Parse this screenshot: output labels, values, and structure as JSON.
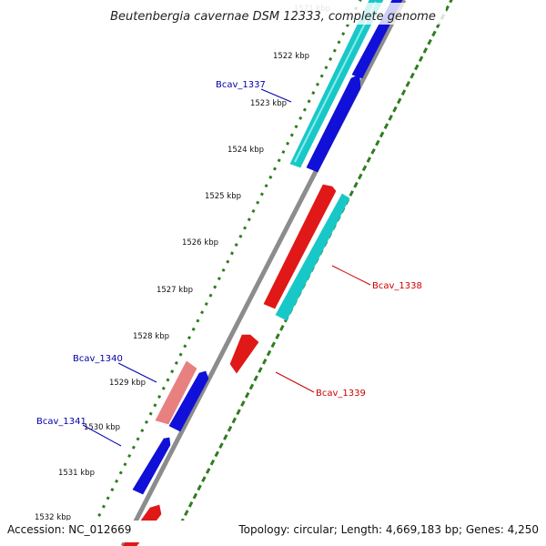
{
  "header": {
    "title": "Beutenbergia cavernae DSM 12333, complete genome"
  },
  "footer": {
    "accession": "Accession: NC_012669",
    "topology": "Topology: circular; Length: 4,669,183 bp; Genes: 4,250"
  },
  "colors": {
    "backbone": "#8c8c8c",
    "ticks": "#2e7d1e",
    "forward_gene": "#1010d8",
    "forward_rna": "#18c8c8",
    "reverse_gene": "#e01818",
    "reverse_pseudo": "#e88080",
    "label_blue": "#0000aa",
    "label_red": "#cc0000"
  },
  "chart_data": {
    "type": "genome-map",
    "units": "kbp",
    "visible_range_kbp": [
      1521,
      1532
    ],
    "tick_labels": [
      "1521 kbp",
      "1522 kbp",
      "1523 kbp",
      "1524 kbp",
      "1525 kbp",
      "1526 kbp",
      "1527 kbp",
      "1528 kbp",
      "1529 kbp",
      "1530 kbp",
      "1531 kbp",
      "1532 kbp"
    ],
    "genes": [
      {
        "label": "Bcav_1337",
        "strand": "+",
        "color_key": "forward_rna",
        "labeled": true
      },
      {
        "label": "",
        "strand": "+",
        "color_key": "forward_gene",
        "labeled": false
      },
      {
        "label": "",
        "strand": "+",
        "color_key": "forward_gene",
        "labeled": false
      },
      {
        "label": "Bcav_1338",
        "strand": "-",
        "color_key": "reverse_gene",
        "labeled": true
      },
      {
        "label": "",
        "strand": "+",
        "color_key": "forward_rna",
        "labeled": false
      },
      {
        "label": "Bcav_1339",
        "strand": "-",
        "color_key": "reverse_gene",
        "labeled": true
      },
      {
        "label": "Bcav_1340",
        "strand": "-",
        "color_key": "reverse_pseudo",
        "labeled": true
      },
      {
        "label": "",
        "strand": "+",
        "color_key": "forward_gene",
        "labeled": false
      },
      {
        "label": "Bcav_1341",
        "strand": "+",
        "color_key": "forward_gene",
        "labeled": true
      },
      {
        "label": "",
        "strand": "-",
        "color_key": "reverse_gene",
        "labeled": false
      }
    ]
  }
}
